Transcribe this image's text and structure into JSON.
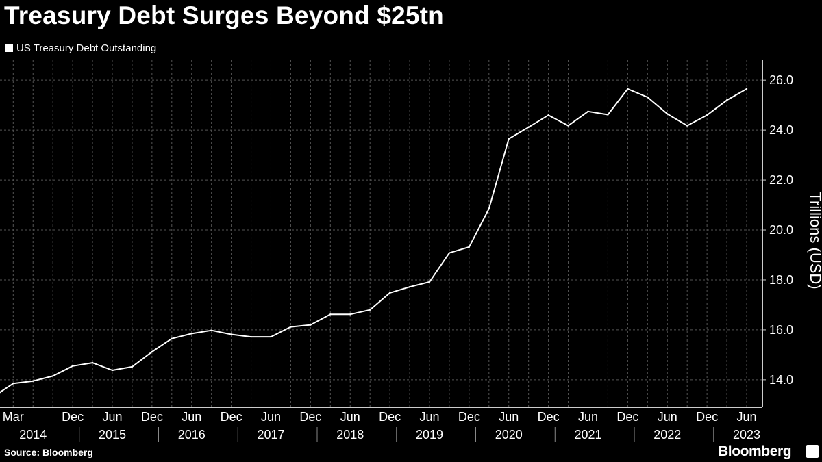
{
  "title": "Treasury Debt Surges Beyond $25tn",
  "legend": {
    "label": "US Treasury Debt Outstanding"
  },
  "source": "Source: Bloomberg",
  "brand": "Bloomberg",
  "colors": {
    "background": "#000000",
    "line": "#ffffff",
    "grid": "#555555",
    "text": "#ffffff"
  },
  "chart_data": {
    "type": "line",
    "title": "Treasury Debt Surges Beyond $25tn",
    "ylabel": "Trillions (USD)",
    "xlabel": "",
    "ylim": [
      12.9,
      26.8
    ],
    "yticks": [
      14.0,
      16.0,
      18.0,
      20.0,
      22.0,
      24.0,
      26.0
    ],
    "ytick_labels": [
      "14.0",
      "16.0",
      "18.0",
      "20.0",
      "22.0",
      "24.0",
      "26.0"
    ],
    "y_axis_position": "right",
    "grid": true,
    "legend_position": "top-left",
    "x": [
      "2014-01",
      "2014-03",
      "2014-06",
      "2014-09",
      "2014-12",
      "2015-03",
      "2015-06",
      "2015-09",
      "2015-12",
      "2016-03",
      "2016-06",
      "2016-09",
      "2016-12",
      "2017-03",
      "2017-06",
      "2017-09",
      "2017-12",
      "2018-03",
      "2018-06",
      "2018-09",
      "2018-12",
      "2019-03",
      "2019-06",
      "2019-09",
      "2019-12",
      "2020-03",
      "2020-06",
      "2020-09",
      "2020-12",
      "2021-03",
      "2021-06",
      "2021-09",
      "2021-12",
      "2022-03",
      "2022-06",
      "2022-09",
      "2022-12",
      "2023-03",
      "2023-06"
    ],
    "month_tick_labels": [
      {
        "x": "2014-03",
        "label": "Mar"
      },
      {
        "x": "2014-12",
        "label": "Dec"
      },
      {
        "x": "2015-06",
        "label": "Jun"
      },
      {
        "x": "2015-12",
        "label": "Dec"
      },
      {
        "x": "2016-06",
        "label": "Jun"
      },
      {
        "x": "2016-12",
        "label": "Dec"
      },
      {
        "x": "2017-06",
        "label": "Jun"
      },
      {
        "x": "2017-12",
        "label": "Dec"
      },
      {
        "x": "2018-06",
        "label": "Jun"
      },
      {
        "x": "2018-12",
        "label": "Dec"
      },
      {
        "x": "2019-06",
        "label": "Jun"
      },
      {
        "x": "2019-12",
        "label": "Dec"
      },
      {
        "x": "2020-06",
        "label": "Jun"
      },
      {
        "x": "2020-12",
        "label": "Dec"
      },
      {
        "x": "2021-06",
        "label": "Jun"
      },
      {
        "x": "2021-12",
        "label": "Dec"
      },
      {
        "x": "2022-06",
        "label": "Jun"
      },
      {
        "x": "2022-12",
        "label": "Dec"
      },
      {
        "x": "2023-06",
        "label": "Jun"
      }
    ],
    "year_tick_labels": [
      {
        "x": "2014-06",
        "label": "2014"
      },
      {
        "x": "2015-06",
        "label": "2015"
      },
      {
        "x": "2016-06",
        "label": "2016"
      },
      {
        "x": "2017-06",
        "label": "2017"
      },
      {
        "x": "2018-06",
        "label": "2018"
      },
      {
        "x": "2019-06",
        "label": "2019"
      },
      {
        "x": "2020-06",
        "label": "2020"
      },
      {
        "x": "2021-06",
        "label": "2021"
      },
      {
        "x": "2022-06",
        "label": "2022"
      },
      {
        "x": "2023-06",
        "label": "2023"
      }
    ],
    "series": [
      {
        "name": "US Treasury Debt Outstanding",
        "values": [
          13.5,
          13.85,
          13.95,
          14.15,
          14.55,
          14.68,
          14.38,
          14.52,
          15.12,
          15.65,
          15.85,
          15.98,
          15.82,
          15.72,
          15.72,
          16.12,
          16.2,
          16.62,
          16.62,
          16.8,
          17.48,
          17.72,
          17.92,
          19.08,
          19.32,
          20.85,
          23.65,
          24.12,
          24.6,
          24.18,
          24.75,
          24.62,
          25.65,
          25.32,
          24.65,
          24.18,
          24.6,
          25.2,
          25.65
        ]
      }
    ]
  }
}
